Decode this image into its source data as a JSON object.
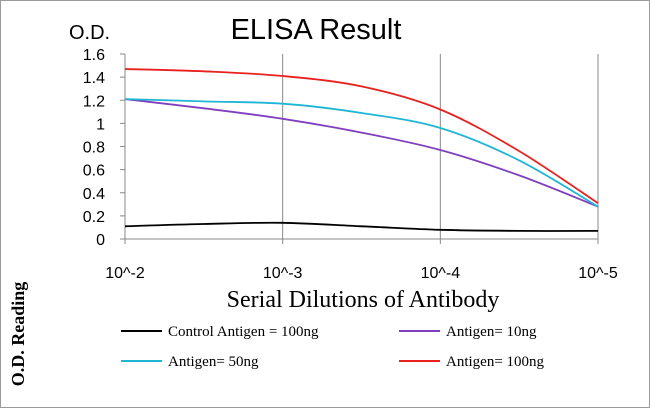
{
  "chart_data": {
    "type": "line",
    "title": "ELISA Result",
    "ylabel_top": "O.D.",
    "ylabel_side": "O.D. Reading",
    "xlabel": "Serial Dilutions of Antibody",
    "x_ticks": [
      "10^-2",
      "10^-3",
      "10^-4",
      "10^-5"
    ],
    "y_ticks": [
      "0",
      "0.2",
      "0.4",
      "0.6",
      "0.8",
      "1",
      "1.2",
      "1.4",
      "1.6"
    ],
    "ylim": [
      0,
      1.6
    ],
    "x": [
      0,
      0.5,
      1,
      1.5,
      2,
      2.5,
      3
    ],
    "grid": "vertical",
    "legend_position": "bottom",
    "series": [
      {
        "name": "Control Antigen = 100ng",
        "color": "#000000",
        "values": [
          0.11,
          0.13,
          0.14,
          0.11,
          0.08,
          0.07,
          0.07
        ]
      },
      {
        "name": "Antigen= 10ng",
        "color": "#7f3fbf",
        "values": [
          1.21,
          1.13,
          1.04,
          0.92,
          0.77,
          0.55,
          0.28
        ]
      },
      {
        "name": "Antigen= 50ng",
        "color": "#1fb6d6",
        "values": [
          1.21,
          1.19,
          1.17,
          1.09,
          0.96,
          0.68,
          0.28
        ]
      },
      {
        "name": "Antigen= 100ng",
        "color": "#e8211e",
        "values": [
          1.47,
          1.45,
          1.41,
          1.32,
          1.12,
          0.76,
          0.31
        ]
      }
    ]
  }
}
